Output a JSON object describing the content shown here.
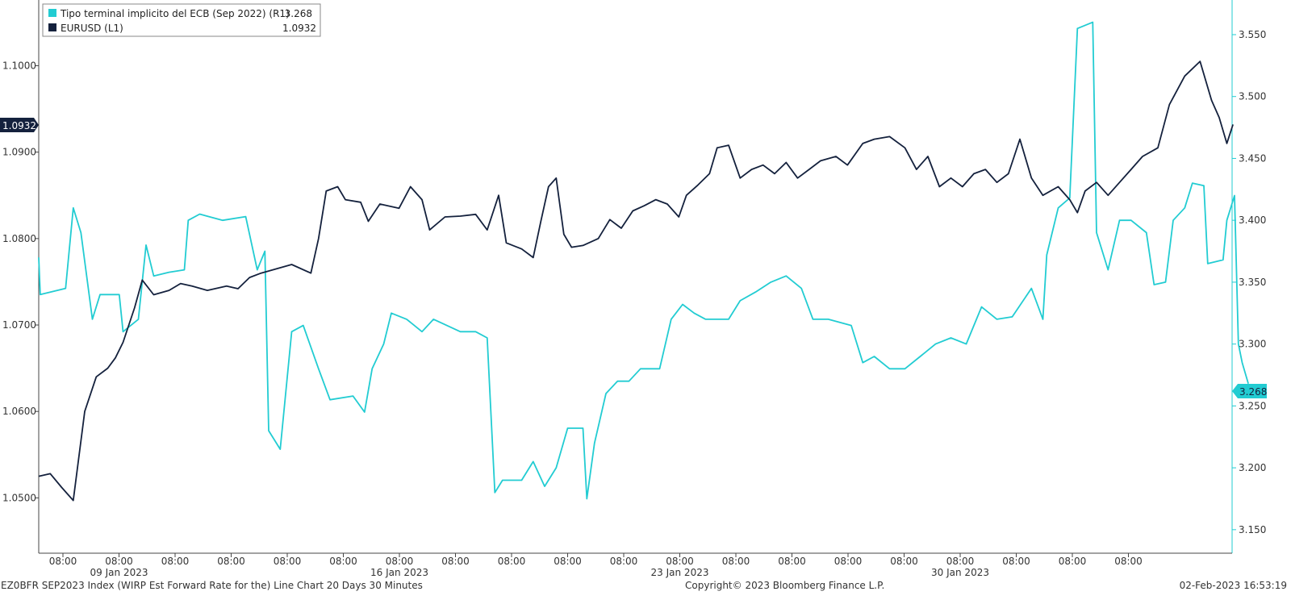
{
  "chart_data": {
    "type": "line",
    "colors": {
      "series_right": "#22CCD2",
      "series_left": "#14213D",
      "background": "#FFFFFF"
    },
    "grid": false,
    "legend_position": "top-left",
    "series": [
      {
        "name": "Tipo terminal implicito del ECB (Sep 2022) (R1)",
        "legend_value": "3.268",
        "axis": "right",
        "current_tag": "3.268"
      },
      {
        "name": "EURUSD (L1)",
        "legend_value": "1.0932",
        "axis": "left",
        "current_tag": "1.0932"
      }
    ],
    "left_axis": {
      "ylim": [
        1.0436,
        1.1076
      ],
      "ticks": [
        "1.0500",
        "1.0600",
        "1.0700",
        "1.0800",
        "1.0900",
        "1.1000"
      ]
    },
    "right_axis": {
      "ylim": [
        3.131,
        3.578
      ],
      "ticks": [
        "3.150",
        "3.200",
        "3.250",
        "3.300",
        "3.350",
        "3.400",
        "3.450",
        "3.500",
        "3.550"
      ]
    },
    "x_tick_labels": [
      "08:00",
      "08:00",
      "08:00",
      "08:00",
      "08:00",
      "08:00",
      "08:00",
      "08:00",
      "08:00",
      "08:00",
      "08:00",
      "08:00",
      "08:00",
      "08:00",
      "08:00",
      "08:00",
      "08:00",
      "08:00",
      "08:00",
      "08:00"
    ],
    "x_date_labels": [
      "09 Jan 2023",
      "16 Jan 2023",
      "23 Jan 2023",
      "30 Jan 2023"
    ],
    "eurusd_points": [
      [
        0,
        1.0525
      ],
      [
        0.15,
        1.0528
      ],
      [
        0.3,
        1.0512
      ],
      [
        0.45,
        1.0497
      ],
      [
        0.6,
        1.06
      ],
      [
        0.75,
        1.064
      ],
      [
        0.9,
        1.065
      ],
      [
        1.0,
        1.0662
      ],
      [
        1.1,
        1.068
      ],
      [
        1.25,
        1.072
      ],
      [
        1.35,
        1.0752
      ],
      [
        1.5,
        1.0735
      ],
      [
        1.7,
        1.074
      ],
      [
        1.85,
        1.0748
      ],
      [
        2.0,
        1.0745
      ],
      [
        2.2,
        1.074
      ],
      [
        2.45,
        1.0745
      ],
      [
        2.6,
        1.0742
      ],
      [
        2.75,
        1.0755
      ],
      [
        2.9,
        1.076
      ],
      [
        3.1,
        1.0765
      ],
      [
        3.3,
        1.077
      ],
      [
        3.55,
        1.076
      ],
      [
        3.65,
        1.08
      ],
      [
        3.75,
        1.0855
      ],
      [
        3.9,
        1.086
      ],
      [
        4.0,
        1.0845
      ],
      [
        4.2,
        1.0842
      ],
      [
        4.3,
        1.082
      ],
      [
        4.45,
        1.084
      ],
      [
        4.7,
        1.0835
      ],
      [
        4.85,
        1.086
      ],
      [
        5.0,
        1.0845
      ],
      [
        5.1,
        1.081
      ],
      [
        5.3,
        1.0825
      ],
      [
        5.5,
        1.0826
      ],
      [
        5.7,
        1.0828
      ],
      [
        5.85,
        1.081
      ],
      [
        6.0,
        1.085
      ],
      [
        6.1,
        1.0795
      ],
      [
        6.3,
        1.0788
      ],
      [
        6.45,
        1.0778
      ],
      [
        6.55,
        1.082
      ],
      [
        6.65,
        1.086
      ],
      [
        6.75,
        1.087
      ],
      [
        6.85,
        1.0805
      ],
      [
        6.95,
        1.079
      ],
      [
        7.1,
        1.0792
      ],
      [
        7.3,
        1.08
      ],
      [
        7.45,
        1.0822
      ],
      [
        7.6,
        1.0812
      ],
      [
        7.75,
        1.0832
      ],
      [
        7.9,
        1.0838
      ],
      [
        8.05,
        1.0845
      ],
      [
        8.2,
        1.084
      ],
      [
        8.35,
        1.0825
      ],
      [
        8.45,
        1.085
      ],
      [
        8.6,
        1.0862
      ],
      [
        8.75,
        1.0875
      ],
      [
        8.85,
        1.0905
      ],
      [
        9.0,
        1.0908
      ],
      [
        9.15,
        1.087
      ],
      [
        9.3,
        1.088
      ],
      [
        9.45,
        1.0885
      ],
      [
        9.6,
        1.0875
      ],
      [
        9.75,
        1.0888
      ],
      [
        9.9,
        1.087
      ],
      [
        10.05,
        1.088
      ],
      [
        10.2,
        1.089
      ],
      [
        10.4,
        1.0895
      ],
      [
        10.55,
        1.0885
      ],
      [
        10.75,
        1.091
      ],
      [
        10.9,
        1.0915
      ],
      [
        11.1,
        1.0918
      ],
      [
        11.3,
        1.0905
      ],
      [
        11.45,
        1.088
      ],
      [
        11.6,
        1.0895
      ],
      [
        11.75,
        1.086
      ],
      [
        11.9,
        1.087
      ],
      [
        12.05,
        1.086
      ],
      [
        12.2,
        1.0875
      ],
      [
        12.35,
        1.088
      ],
      [
        12.5,
        1.0865
      ],
      [
        12.65,
        1.0875
      ],
      [
        12.8,
        1.0915
      ],
      [
        12.95,
        1.087
      ],
      [
        13.1,
        1.085
      ],
      [
        13.3,
        1.086
      ],
      [
        13.45,
        1.0845
      ],
      [
        13.55,
        1.083
      ],
      [
        13.65,
        1.0855
      ],
      [
        13.8,
        1.0865
      ],
      [
        13.95,
        1.085
      ],
      [
        14.1,
        1.0865
      ],
      [
        14.25,
        1.088
      ],
      [
        14.4,
        1.0895
      ],
      [
        14.6,
        1.0905
      ],
      [
        14.75,
        1.0955
      ],
      [
        14.95,
        1.0988
      ],
      [
        15.15,
        1.1005
      ],
      [
        15.3,
        1.096
      ],
      [
        15.4,
        1.094
      ],
      [
        15.5,
        1.091
      ],
      [
        15.58,
        1.0932
      ]
    ],
    "ecb_points": [
      [
        0,
        3.37
      ],
      [
        0.02,
        3.34
      ],
      [
        0.35,
        3.345
      ],
      [
        0.45,
        3.41
      ],
      [
        0.55,
        3.39
      ],
      [
        0.7,
        3.32
      ],
      [
        0.8,
        3.34
      ],
      [
        1.05,
        3.34
      ],
      [
        1.1,
        3.31
      ],
      [
        1.3,
        3.32
      ],
      [
        1.4,
        3.38
      ],
      [
        1.5,
        3.355
      ],
      [
        1.7,
        3.358
      ],
      [
        1.9,
        3.36
      ],
      [
        1.95,
        3.4
      ],
      [
        2.1,
        3.405
      ],
      [
        2.4,
        3.4
      ],
      [
        2.7,
        3.403
      ],
      [
        2.85,
        3.36
      ],
      [
        2.95,
        3.375
      ],
      [
        3.0,
        3.23
      ],
      [
        3.15,
        3.215
      ],
      [
        3.3,
        3.31
      ],
      [
        3.45,
        3.315
      ],
      [
        3.65,
        3.28
      ],
      [
        3.8,
        3.255
      ],
      [
        4.1,
        3.258
      ],
      [
        4.25,
        3.245
      ],
      [
        4.35,
        3.28
      ],
      [
        4.5,
        3.3
      ],
      [
        4.6,
        3.325
      ],
      [
        4.8,
        3.32
      ],
      [
        5.0,
        3.31
      ],
      [
        5.15,
        3.32
      ],
      [
        5.5,
        3.31
      ],
      [
        5.7,
        3.31
      ],
      [
        5.85,
        3.305
      ],
      [
        5.95,
        3.18
      ],
      [
        6.05,
        3.19
      ],
      [
        6.3,
        3.19
      ],
      [
        6.45,
        3.205
      ],
      [
        6.6,
        3.185
      ],
      [
        6.75,
        3.2
      ],
      [
        6.9,
        3.232
      ],
      [
        7.1,
        3.232
      ],
      [
        7.15,
        3.175
      ],
      [
        7.25,
        3.22
      ],
      [
        7.4,
        3.26
      ],
      [
        7.55,
        3.27
      ],
      [
        7.7,
        3.27
      ],
      [
        7.85,
        3.28
      ],
      [
        8.1,
        3.28
      ],
      [
        8.25,
        3.32
      ],
      [
        8.4,
        3.332
      ],
      [
        8.55,
        3.325
      ],
      [
        8.7,
        3.32
      ],
      [
        9.0,
        3.32
      ],
      [
        9.15,
        3.335
      ],
      [
        9.35,
        3.342
      ],
      [
        9.55,
        3.35
      ],
      [
        9.75,
        3.355
      ],
      [
        9.95,
        3.345
      ],
      [
        10.1,
        3.32
      ],
      [
        10.3,
        3.32
      ],
      [
        10.6,
        3.315
      ],
      [
        10.75,
        3.285
      ],
      [
        10.9,
        3.29
      ],
      [
        11.1,
        3.28
      ],
      [
        11.3,
        3.28
      ],
      [
        11.5,
        3.29
      ],
      [
        11.7,
        3.3
      ],
      [
        11.9,
        3.305
      ],
      [
        12.1,
        3.3
      ],
      [
        12.3,
        3.33
      ],
      [
        12.5,
        3.32
      ],
      [
        12.7,
        3.322
      ],
      [
        12.95,
        3.345
      ],
      [
        13.1,
        3.32
      ],
      [
        13.15,
        3.372
      ],
      [
        13.3,
        3.41
      ],
      [
        13.45,
        3.418
      ],
      [
        13.55,
        3.555
      ],
      [
        13.75,
        3.56
      ],
      [
        13.8,
        3.39
      ],
      [
        13.95,
        3.36
      ],
      [
        14.1,
        3.4
      ],
      [
        14.25,
        3.4
      ],
      [
        14.45,
        3.39
      ],
      [
        14.55,
        3.348
      ],
      [
        14.7,
        3.35
      ],
      [
        14.8,
        3.4
      ],
      [
        14.95,
        3.41
      ],
      [
        15.05,
        3.43
      ],
      [
        15.2,
        3.428
      ],
      [
        15.25,
        3.365
      ],
      [
        15.45,
        3.368
      ],
      [
        15.5,
        3.4
      ],
      [
        15.6,
        3.42
      ],
      [
        15.65,
        3.3
      ],
      [
        15.7,
        3.285
      ],
      [
        15.78,
        3.268
      ]
    ]
  },
  "footer": {
    "left": "EZ0BFR SEP2023 Index (WIRP Est Forward Rate for the) Line Chart 20 Days 30 Minutes",
    "center": "Copyright© 2023 Bloomberg Finance L.P.",
    "right": "02-Feb-2023 16:53:19"
  }
}
